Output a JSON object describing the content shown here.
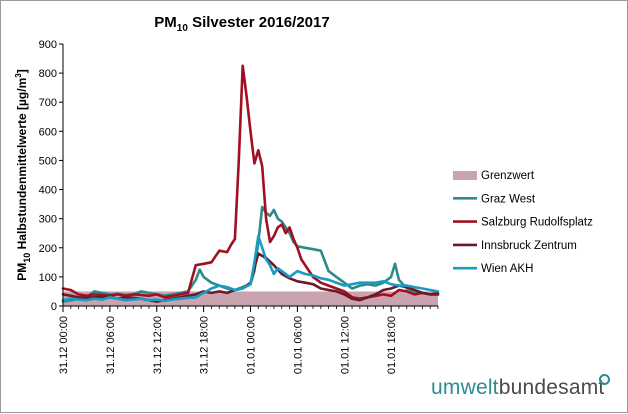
{
  "chart_data": {
    "type": "line",
    "title": "PM",
    "title_sub": "10",
    "title_rest": " Silvester 2016/2017",
    "ylabel_parts": [
      "PM",
      "10",
      " Halbstundenmittelwerte [µg/m",
      "3",
      "]"
    ],
    "ylim": [
      0,
      900
    ],
    "yticks": [
      0,
      100,
      200,
      300,
      400,
      500,
      600,
      700,
      800,
      900
    ],
    "xlim_hours": [
      0,
      48
    ],
    "xticks": [
      {
        "h": 0,
        "label": "31.12 00:00"
      },
      {
        "h": 6,
        "label": "31.12 06:00"
      },
      {
        "h": 12,
        "label": "31.12 12:00"
      },
      {
        "h": 18,
        "label": "31.12 18:00"
      },
      {
        "h": 24,
        "label": "01.01 00:00"
      },
      {
        "h": 30,
        "label": "01.01 06:00"
      },
      {
        "h": 36,
        "label": "01.01 12:00"
      },
      {
        "h": 42,
        "label": "01.01 18:00"
      }
    ],
    "grid": false,
    "legend_position": "right",
    "limit": {
      "name": "Grenzwert",
      "value": 50,
      "color": "#c9a3ad"
    },
    "series": [
      {
        "name": "Graz West",
        "color": "#2e8a8a",
        "x": [
          0,
          1,
          2,
          3,
          4,
          5,
          6,
          7,
          8,
          9,
          10,
          11,
          12,
          13,
          14,
          15,
          16,
          17,
          17.5,
          18,
          19,
          20,
          21,
          22,
          23,
          24,
          24.5,
          25,
          25.5,
          26,
          26.5,
          27,
          27.5,
          28,
          28.5,
          29,
          29.5,
          30,
          31,
          32,
          33,
          34,
          35,
          36,
          37,
          38,
          39,
          40,
          41,
          42,
          42.5,
          43,
          44,
          45,
          46,
          47,
          48
        ],
        "y": [
          15,
          20,
          25,
          30,
          50,
          45,
          40,
          42,
          38,
          40,
          50,
          45,
          40,
          35,
          40,
          45,
          50,
          90,
          125,
          100,
          80,
          70,
          60,
          55,
          65,
          75,
          120,
          220,
          340,
          320,
          310,
          330,
          300,
          290,
          270,
          250,
          220,
          205,
          200,
          195,
          190,
          120,
          100,
          80,
          60,
          70,
          75,
          70,
          80,
          100,
          145,
          90,
          60,
          50,
          45,
          40,
          40
        ]
      },
      {
        "name": "Salzburg Rudolfsplatz",
        "color": "#a01020",
        "x": [
          0,
          1,
          2,
          3,
          4,
          5,
          6,
          7,
          8,
          9,
          10,
          11,
          12,
          13,
          14,
          15,
          16,
          17,
          18,
          19,
          20,
          21,
          21.5,
          22,
          22.5,
          23,
          23.5,
          24,
          24.5,
          25,
          25.5,
          26,
          26.5,
          27,
          27.5,
          28,
          28.5,
          29,
          29.5,
          30,
          30.5,
          31,
          32,
          33,
          34,
          35,
          36,
          37,
          38,
          39,
          40,
          41,
          42,
          43,
          44,
          45,
          46,
          47,
          48
        ],
        "y": [
          60,
          55,
          40,
          35,
          40,
          38,
          35,
          40,
          35,
          40,
          38,
          35,
          40,
          30,
          35,
          40,
          45,
          140,
          145,
          150,
          190,
          185,
          210,
          230,
          500,
          825,
          720,
          600,
          490,
          535,
          480,
          300,
          220,
          240,
          270,
          280,
          250,
          270,
          230,
          200,
          160,
          140,
          100,
          80,
          70,
          60,
          50,
          30,
          25,
          30,
          35,
          40,
          35,
          55,
          50,
          40,
          45,
          40,
          40
        ]
      },
      {
        "name": "Innsbruck Zentrum",
        "color": "#6a1b2a",
        "x": [
          0,
          1,
          2,
          3,
          4,
          5,
          6,
          7,
          8,
          9,
          10,
          11,
          12,
          13,
          14,
          15,
          16,
          17,
          18,
          19,
          20,
          21,
          22,
          23,
          24,
          25,
          26,
          27,
          28,
          29,
          30,
          31,
          32,
          33,
          34,
          35,
          36,
          37,
          38,
          39,
          40,
          41,
          42,
          43,
          44,
          45,
          46,
          47,
          48
        ],
        "y": [
          40,
          35,
          30,
          28,
          30,
          32,
          30,
          25,
          30,
          28,
          25,
          20,
          15,
          20,
          25,
          30,
          35,
          40,
          50,
          45,
          50,
          45,
          55,
          60,
          80,
          180,
          165,
          140,
          110,
          95,
          85,
          80,
          75,
          60,
          55,
          50,
          40,
          25,
          20,
          30,
          40,
          55,
          60,
          70,
          65,
          55,
          45,
          40,
          45
        ]
      },
      {
        "name": "Wien AKH",
        "color": "#1a9bc4",
        "x": [
          0,
          1,
          2,
          3,
          4,
          5,
          6,
          7,
          8,
          9,
          10,
          11,
          12,
          13,
          14,
          15,
          16,
          17,
          18,
          19,
          20,
          21,
          22,
          23,
          24,
          24.5,
          25,
          25.5,
          26,
          26.5,
          27,
          27.5,
          28,
          29,
          30,
          31,
          32,
          33,
          34,
          35,
          36,
          37,
          38,
          39,
          40,
          41,
          42,
          43,
          44,
          45,
          46,
          47,
          48
        ],
        "y": [
          20,
          25,
          22,
          20,
          25,
          22,
          30,
          25,
          20,
          22,
          25,
          20,
          22,
          18,
          22,
          25,
          28,
          30,
          45,
          60,
          70,
          65,
          55,
          60,
          75,
          150,
          240,
          200,
          160,
          140,
          110,
          130,
          120,
          100,
          120,
          110,
          105,
          95,
          90,
          80,
          70,
          75,
          80,
          80,
          80,
          85,
          75,
          70,
          70,
          65,
          60,
          55,
          50
        ]
      }
    ],
    "legend": [
      "Grenzwert",
      "Graz West",
      "Salzburg Rudolfsplatz",
      "Innsbruck Zentrum",
      "Wien AKH"
    ]
  },
  "branding": {
    "part1": "umwelt",
    "part2": "bundesamt"
  }
}
